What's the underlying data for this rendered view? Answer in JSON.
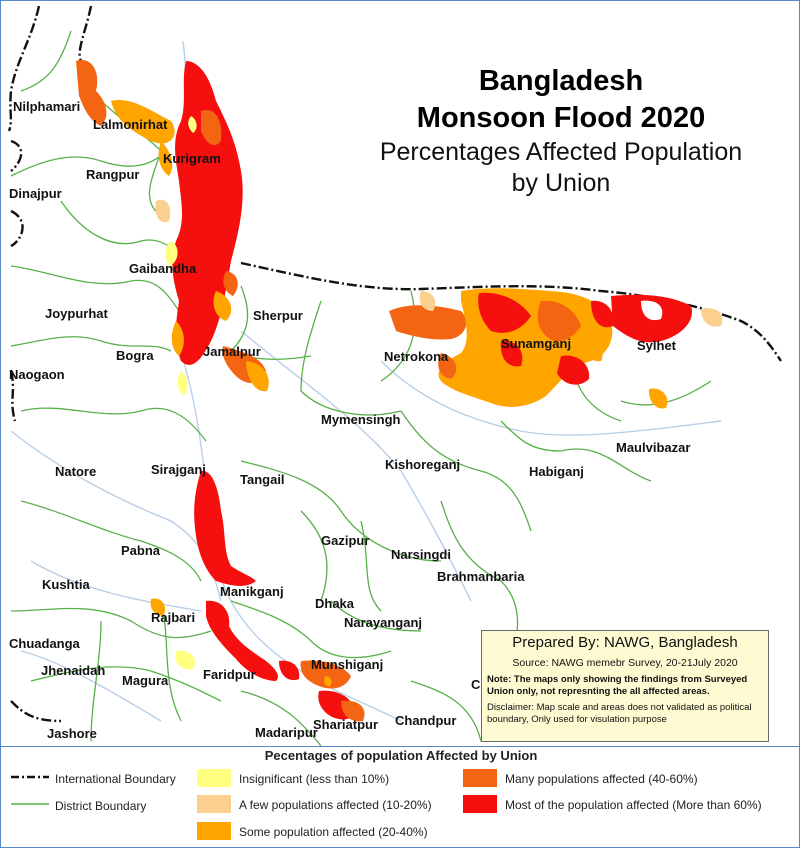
{
  "title": {
    "line1": "Bangladesh",
    "line2": "Monsoon Flood 2020",
    "subtitle1": "Percentages Affected Population",
    "subtitle2": "by Union"
  },
  "districts": {
    "nilphamari": "Nilphamari",
    "lalmonirhat": "Lalmonirhat",
    "kurigram": "Kurigram",
    "rangpur": "Rangpur",
    "dinajpur": "Dinajpur",
    "gaibandha": "Gaibandha",
    "joypurhat": "Joypurhat",
    "sherpur": "Sherpur",
    "bogra": "Bogra",
    "jamalpur": "Jamalpur",
    "naogaon": "Naogaon",
    "netrokona": "Netrokona",
    "sunamganj": "Sunamganj",
    "sylhet": "Sylhet",
    "mymensingh": "Mymensingh",
    "kishoreganj": "Kishoreganj",
    "habiganj": "Habiganj",
    "maulvibazar": "Maulvibazar",
    "natore": "Natore",
    "sirajganj": "Sirajganj",
    "tangail": "Tangail",
    "gazipur": "Gazipur",
    "narsingdi": "Narsingdi",
    "pabna": "Pabna",
    "brahmanbaria": "Brahmanbaria",
    "kushtia": "Kushtia",
    "manikganj": "Manikganj",
    "dhaka": "Dhaka",
    "narayanganj": "Narayanganj",
    "rajbari": "Rajbari",
    "chuadanga": "Chuadanga",
    "jhenaidah": "Jhenaidah",
    "magura": "Magura",
    "faridpur": "Faridpur",
    "munshiganj": "Munshiganj",
    "shariatpur": "Shariatpur",
    "chandpur": "Chandpur",
    "jashore": "Jashore",
    "madaripur": "Madaripur",
    "edge_c": "C"
  },
  "credit": {
    "prepared_by": "Prepared By: NAWG, Bangladesh",
    "source": "Source: NAWG memebr Survey, 20-21July 2020",
    "note": "Note: The maps only showing the findings from Surveyed Union only, not represnting the all affected areas.",
    "disclaimer": "Disclaimer: Map scale and areas does not validated as political boundary, Only used for visulation purpose"
  },
  "legend": {
    "title": "Pecentages of population Affected by Union",
    "international_boundary": "International Boundary",
    "district_boundary": "District Boundary",
    "classes": [
      {
        "label": "Insignificant (less than 10%)",
        "color": "#ffff80"
      },
      {
        "label": "A few populations affected (10-20%)",
        "color": "#fbd08f"
      },
      {
        "label": "Some population affected (20-40%)",
        "color": "#ffa500"
      },
      {
        "label": "Many populations affected (40-60%)",
        "color": "#f36413"
      },
      {
        "label": "Most of the population affected (More than 60%)",
        "color": "#f50f0f"
      }
    ]
  },
  "colors": {
    "district_line": "#58b04a",
    "river": "#b8cfe8",
    "international_line": "#111111",
    "frame": "#5a87c8",
    "credit_bg": "#fefbd2"
  }
}
